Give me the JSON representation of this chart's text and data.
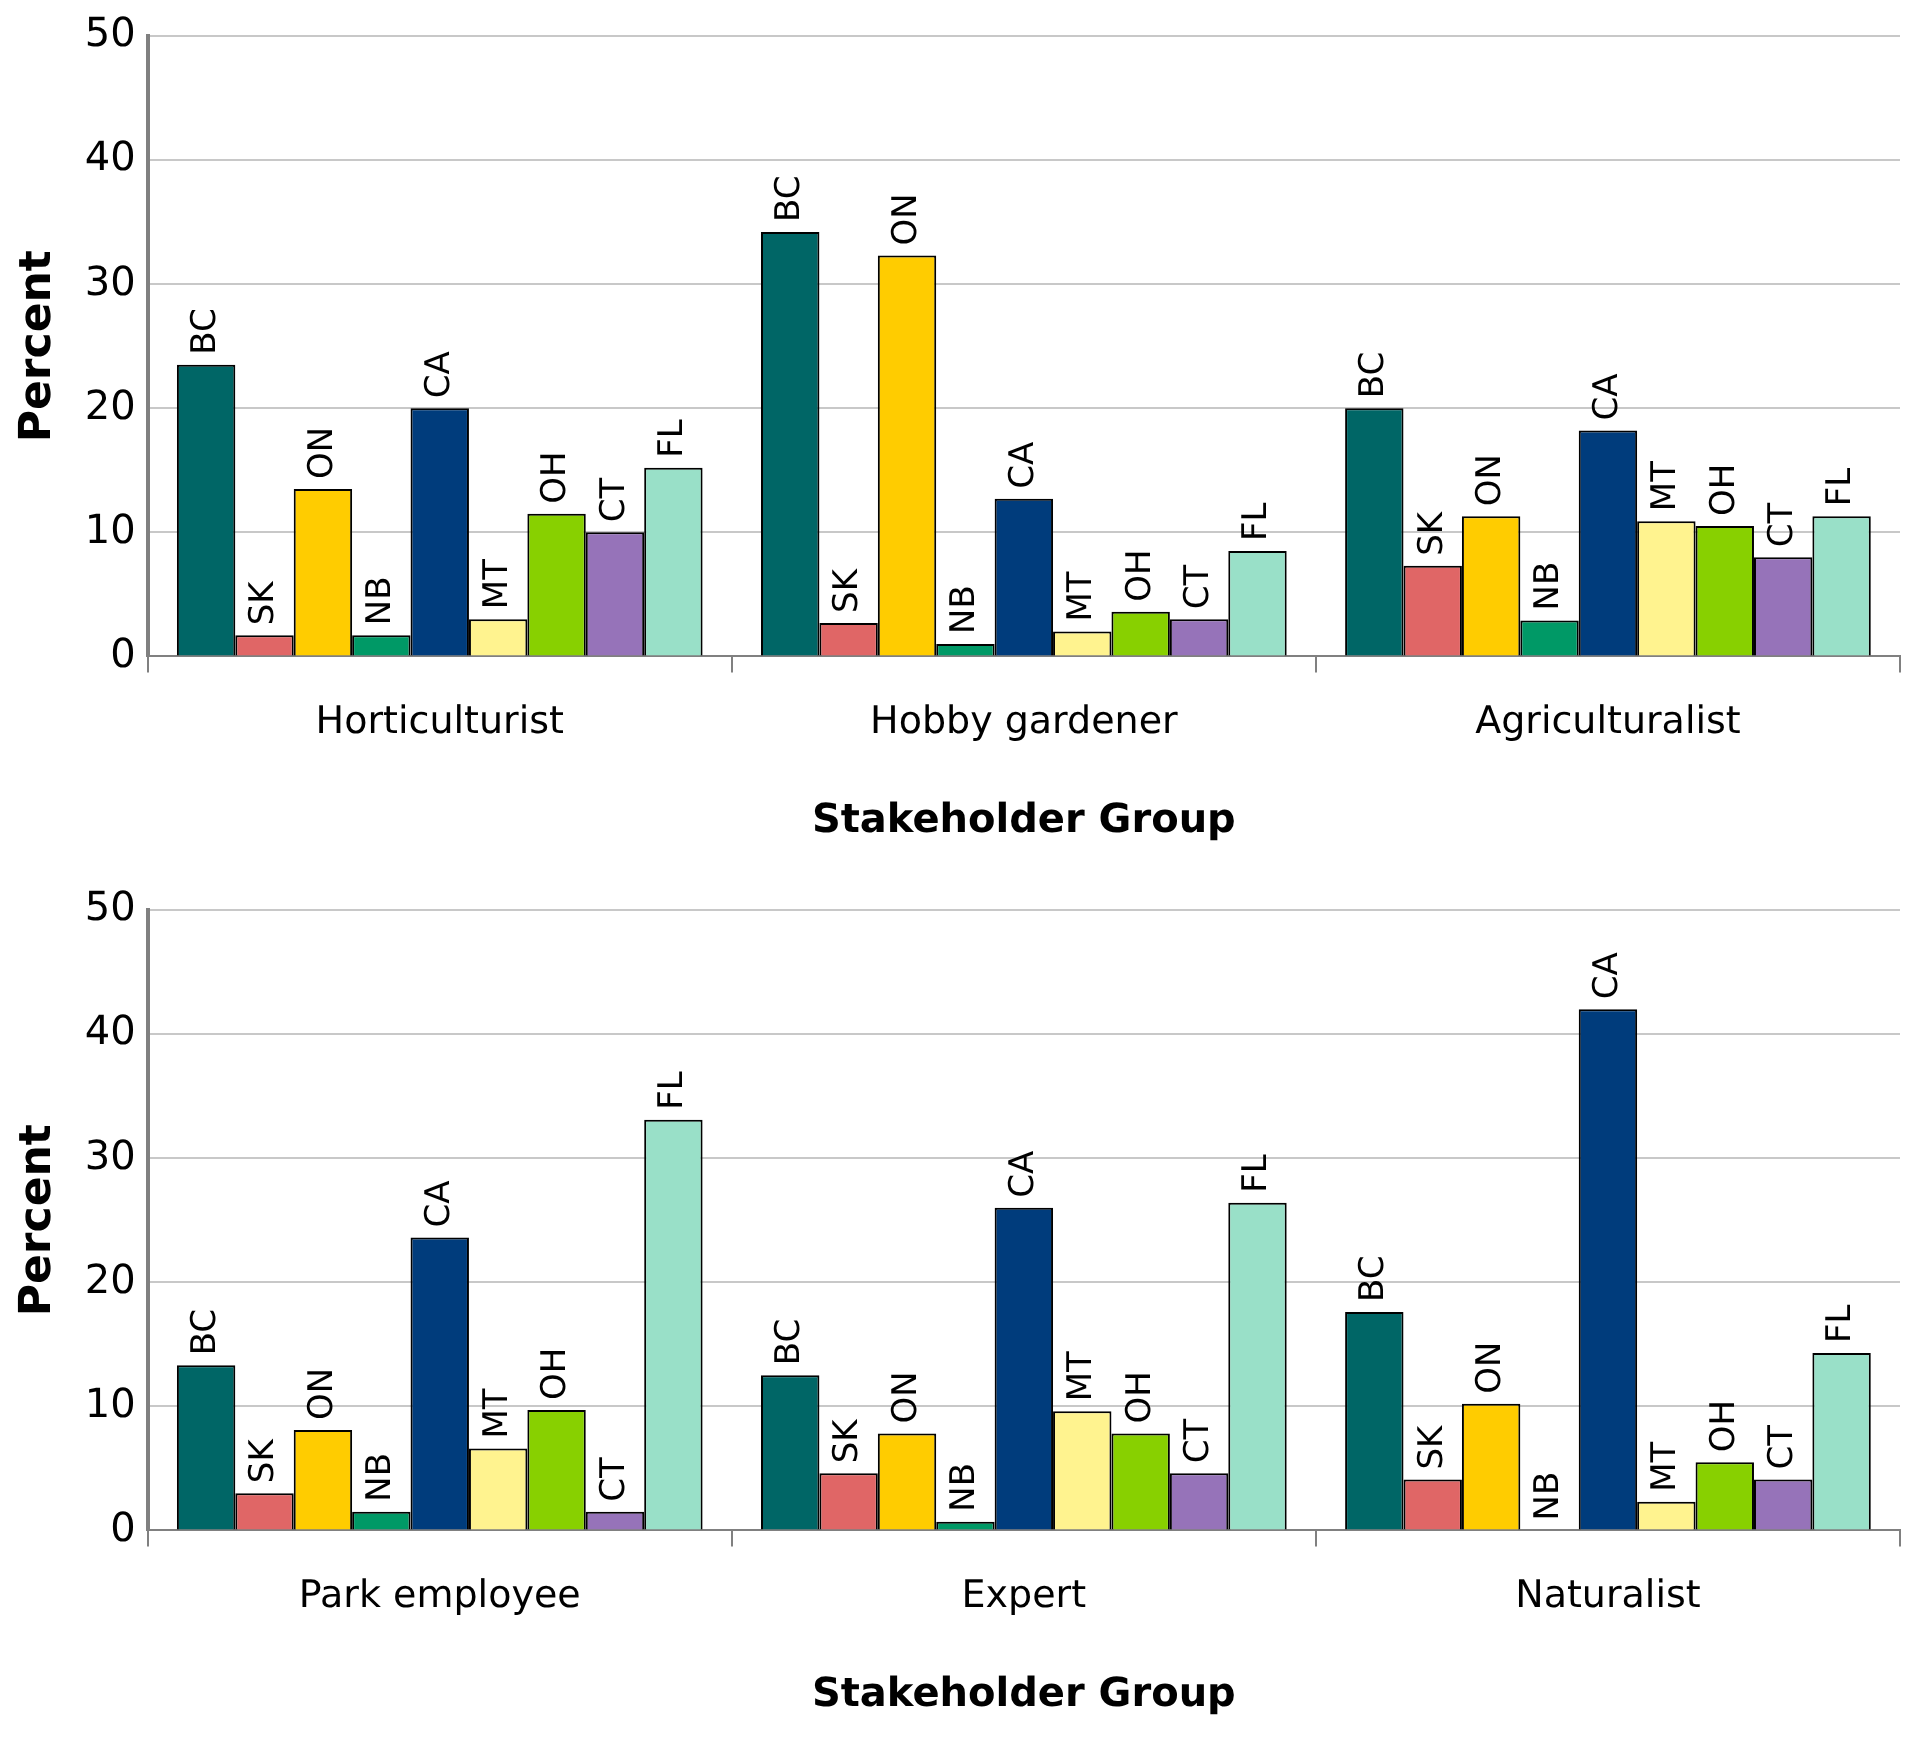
{
  "chart_data": [
    {
      "type": "bar",
      "xlabel": "Stakeholder Group",
      "ylabel": "Percent",
      "categories": [
        "Horticulturist",
        "Hobby gardener",
        "Agriculturalist"
      ],
      "ylim": [
        0,
        50
      ],
      "yticks": [
        0,
        10,
        20,
        30,
        40,
        50
      ],
      "grid": "y",
      "legend": false,
      "series": [
        {
          "name": "BC",
          "color": "#006666",
          "values": [
            23.5,
            34.2,
            20
          ]
        },
        {
          "name": "SK",
          "color": "#e06666",
          "values": [
            1.7,
            2.7,
            7.3
          ]
        },
        {
          "name": "ON",
          "color": "#ffcc00",
          "values": [
            13.5,
            32.3,
            11.3
          ]
        },
        {
          "name": "NB",
          "color": "#009966",
          "values": [
            1.7,
            1,
            2.9
          ]
        },
        {
          "name": "CA",
          "color": "#003c7c",
          "values": [
            20,
            12.7,
            18.2
          ]
        },
        {
          "name": "MT",
          "color": "#fff38f",
          "values": [
            3,
            2,
            10.9
          ]
        },
        {
          "name": "OH",
          "color": "#88d000",
          "values": [
            11.5,
            3.6,
            10.5
          ]
        },
        {
          "name": "CT",
          "color": "#9673b9",
          "values": [
            10,
            3,
            8
          ]
        },
        {
          "name": "FL",
          "color": "#99e0c8",
          "values": [
            15.2,
            8.5,
            11.3
          ]
        }
      ]
    },
    {
      "type": "bar",
      "xlabel": "Stakeholder Group",
      "ylabel": "Percent",
      "categories": [
        "Park employee",
        "Expert",
        "Naturalist"
      ],
      "ylim": [
        0,
        50
      ],
      "yticks": [
        0,
        10,
        20,
        30,
        40,
        50
      ],
      "grid": "y",
      "legend": false,
      "series": [
        {
          "name": "BC",
          "color": "#006666",
          "values": [
            13.3,
            12.5,
            17.6
          ]
        },
        {
          "name": "SK",
          "color": "#e06666",
          "values": [
            3,
            4.6,
            4.1
          ]
        },
        {
          "name": "ON",
          "color": "#ffcc00",
          "values": [
            8.1,
            7.8,
            10.2
          ]
        },
        {
          "name": "NB",
          "color": "#009966",
          "values": [
            1.5,
            0.7,
            0
          ]
        },
        {
          "name": "CA",
          "color": "#003c7c",
          "values": [
            23.6,
            26,
            42
          ]
        },
        {
          "name": "MT",
          "color": "#fff38f",
          "values": [
            6.6,
            9.6,
            2.3
          ]
        },
        {
          "name": "OH",
          "color": "#88d000",
          "values": [
            9.7,
            7.8,
            5.5
          ]
        },
        {
          "name": "CT",
          "color": "#9673b9",
          "values": [
            1.5,
            4.6,
            4.1
          ]
        },
        {
          "name": "FL",
          "color": "#99e0c8",
          "values": [
            33.1,
            26.4,
            14.3
          ]
        }
      ]
    }
  ]
}
